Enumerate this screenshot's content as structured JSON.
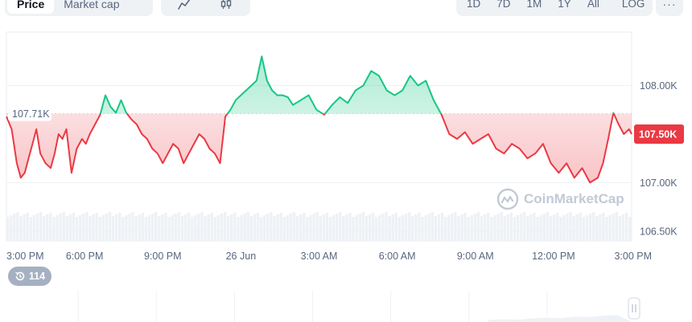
{
  "metric_toggle": {
    "items": [
      "Price",
      "Market cap"
    ],
    "active": 0
  },
  "chart_type_toggle": {
    "items": [
      "line-chart-icon",
      "candlestick-icon"
    ]
  },
  "range_toggle": {
    "items": [
      "1D",
      "7D",
      "1M",
      "1Y",
      "All"
    ],
    "log_label": "LOG",
    "more_label": "···"
  },
  "watermark": "CoinMarketCap",
  "history_badge": {
    "icon": "history-icon",
    "count": "114"
  },
  "colors": {
    "up": "#16c784",
    "down": "#ea3943",
    "ref": "#cfd6e4",
    "axis": "#58667e"
  },
  "chart_data": {
    "type": "line",
    "reference_label": "107.71K",
    "reference_value": 107.71,
    "current_label": "107.50K",
    "current_value": 107.5,
    "y_ticks": [
      {
        "label": "108.00K",
        "value": 108.0
      },
      {
        "label": "107.00K",
        "value": 107.0
      },
      {
        "label": "106.50K",
        "value": 106.5
      }
    ],
    "ylim": [
      106.4,
      108.55
    ],
    "xlim": [
      0,
      24
    ],
    "x_ticks": [
      {
        "label": "3:00 PM",
        "t": 0
      },
      {
        "label": "6:00 PM",
        "t": 3
      },
      {
        "label": "9:00 PM",
        "t": 6
      },
      {
        "label": "26 Jun",
        "t": 9
      },
      {
        "label": "3:00 AM",
        "t": 12
      },
      {
        "label": "6:00 AM",
        "t": 15
      },
      {
        "label": "9:00 AM",
        "t": 18
      },
      {
        "label": "12:00 PM",
        "t": 21
      },
      {
        "label": "3:00 PM",
        "t": 24
      }
    ],
    "series": [
      {
        "x": [
          0,
          0.2,
          0.4,
          0.55,
          0.7,
          0.85,
          1.0,
          1.15,
          1.3,
          1.5,
          1.7,
          1.85,
          2.0,
          2.15,
          2.3,
          2.5,
          2.7,
          2.9,
          3.05,
          3.2,
          3.4,
          3.6,
          3.8,
          4.0,
          4.2,
          4.4,
          4.6,
          4.8,
          5.0,
          5.2,
          5.4,
          5.6,
          5.8,
          6.0,
          6.2,
          6.4,
          6.6,
          6.8,
          7.0,
          7.2,
          7.4,
          7.6,
          7.8,
          8.0,
          8.2,
          8.4,
          8.6,
          8.8,
          9.0,
          9.2,
          9.4,
          9.6,
          9.8,
          10.0,
          10.2,
          10.4,
          10.6,
          10.8,
          11.0,
          11.3,
          11.6,
          11.9,
          12.2,
          12.5,
          12.8,
          13.1,
          13.4,
          13.7,
          14.0,
          14.3,
          14.6,
          14.9,
          15.2,
          15.5,
          15.8,
          16.1,
          16.4,
          16.7,
          17.0,
          17.3,
          17.6,
          17.9,
          18.2,
          18.5,
          18.8,
          19.1,
          19.4,
          19.7,
          20.0,
          20.3,
          20.6,
          20.9,
          21.2,
          21.5,
          21.8,
          22.1,
          22.4,
          22.7,
          22.9,
          23.1,
          23.3,
          23.5,
          23.7,
          23.9,
          24.0
        ],
        "y": [
          107.68,
          107.55,
          107.2,
          107.05,
          107.1,
          107.25,
          107.4,
          107.55,
          107.3,
          107.2,
          107.15,
          107.3,
          107.5,
          107.45,
          107.55,
          107.1,
          107.35,
          107.45,
          107.4,
          107.5,
          107.6,
          107.7,
          107.9,
          107.78,
          107.72,
          107.85,
          107.72,
          107.65,
          107.6,
          107.5,
          107.45,
          107.35,
          107.3,
          107.2,
          107.3,
          107.4,
          107.35,
          107.2,
          107.3,
          107.4,
          107.5,
          107.45,
          107.35,
          107.3,
          107.2,
          107.68,
          107.75,
          107.85,
          107.9,
          107.95,
          108.0,
          108.05,
          108.3,
          108.05,
          107.95,
          107.9,
          107.9,
          107.88,
          107.8,
          107.85,
          107.9,
          107.75,
          107.7,
          107.8,
          107.88,
          107.82,
          107.95,
          108.0,
          108.15,
          108.1,
          107.95,
          107.9,
          107.95,
          108.1,
          108.0,
          108.05,
          107.85,
          107.7,
          107.5,
          107.45,
          107.52,
          107.4,
          107.45,
          107.5,
          107.35,
          107.3,
          107.4,
          107.35,
          107.25,
          107.3,
          107.4,
          107.2,
          107.1,
          107.2,
          107.05,
          107.15,
          107.0,
          107.05,
          107.2,
          107.45,
          107.72,
          107.6,
          107.5,
          107.55,
          107.5
        ]
      }
    ]
  }
}
